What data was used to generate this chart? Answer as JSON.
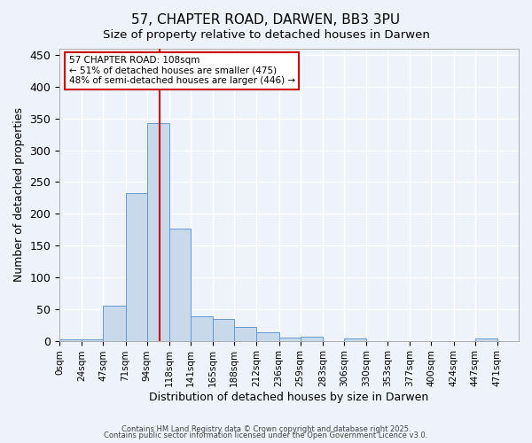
{
  "title": "57, CHAPTER ROAD, DARWEN, BB3 3PU",
  "subtitle": "Size of property relative to detached houses in Darwen",
  "xlabel": "Distribution of detached houses by size in Darwen",
  "ylabel": "Number of detached properties",
  "bin_labels": [
    "0sqm",
    "24sqm",
    "47sqm",
    "71sqm",
    "94sqm",
    "118sqm",
    "141sqm",
    "165sqm",
    "188sqm",
    "212sqm",
    "236sqm",
    "259sqm",
    "283sqm",
    "306sqm",
    "330sqm",
    "353sqm",
    "377sqm",
    "400sqm",
    "424sqm",
    "447sqm",
    "471sqm"
  ],
  "bin_edges": [
    0,
    24,
    47,
    71,
    94,
    118,
    141,
    165,
    188,
    212,
    236,
    259,
    283,
    306,
    330,
    353,
    377,
    400,
    424,
    447,
    471
  ],
  "bar_heights": [
    2,
    2,
    55,
    233,
    343,
    177,
    38,
    35,
    22,
    13,
    5,
    6,
    0,
    3,
    0,
    0,
    0,
    0,
    0,
    3,
    0
  ],
  "bar_color": "#c9d9ec",
  "bar_edgecolor": "#6699cc",
  "property_size": 108,
  "vline_color": "#cc0000",
  "annotation_text": "57 CHAPTER ROAD: 108sqm\n← 51% of detached houses are smaller (475)\n48% of semi-detached houses are larger (446) →",
  "annotation_box_color": "#ffffff",
  "annotation_box_edgecolor": "#cc0000",
  "ylim": [
    0,
    460
  ],
  "background_color": "#eef2fa",
  "grid_color": "#ffffff",
  "footer1": "Contains HM Land Registry data © Crown copyright and database right 2025.",
  "footer2": "Contains public sector information licensed under the Open Government Licence v3.0."
}
